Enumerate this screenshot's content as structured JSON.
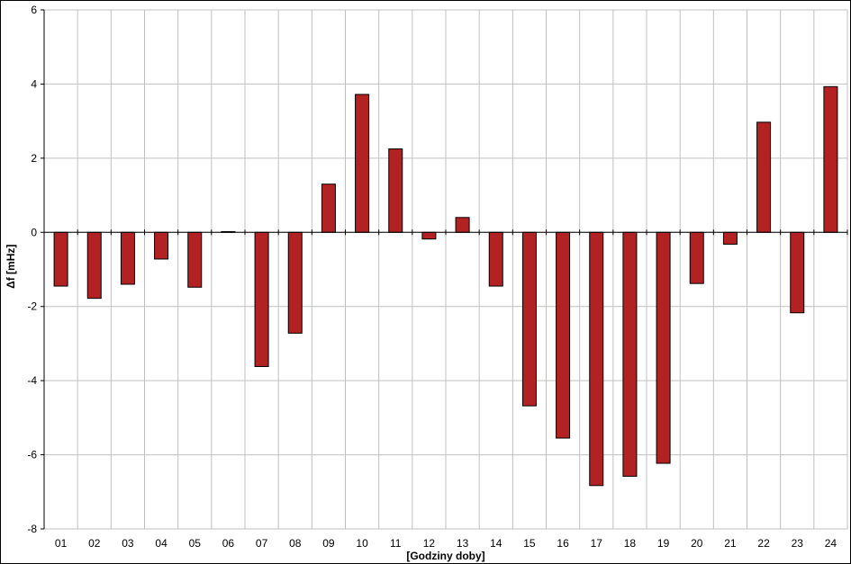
{
  "chart_data": {
    "type": "bar",
    "title": "",
    "xlabel": "[Godziny doby]",
    "ylabel": "Δf [mHz]",
    "ylim": [
      -8,
      6
    ],
    "yticks": [
      6,
      4,
      2,
      0,
      -2,
      -4,
      -6,
      -8
    ],
    "grid": true,
    "categories": [
      "01",
      "02",
      "03",
      "04",
      "05",
      "06",
      "07",
      "08",
      "09",
      "10",
      "11",
      "12",
      "13",
      "14",
      "15",
      "16",
      "17",
      "18",
      "19",
      "20",
      "21",
      "22",
      "23",
      "24"
    ],
    "values": [
      -1.45,
      -1.78,
      -1.4,
      -0.72,
      -1.48,
      0.02,
      -3.62,
      -2.72,
      1.3,
      3.72,
      2.25,
      -0.18,
      0.4,
      -1.45,
      -4.68,
      -5.55,
      -6.83,
      -6.58,
      -6.23,
      -1.38,
      -0.32,
      2.97,
      -2.17,
      3.93
    ],
    "colors": {
      "bar": "#b22222",
      "bar_edge": "#000000",
      "grid": "#c0c0c0",
      "axis": "#000000"
    }
  }
}
